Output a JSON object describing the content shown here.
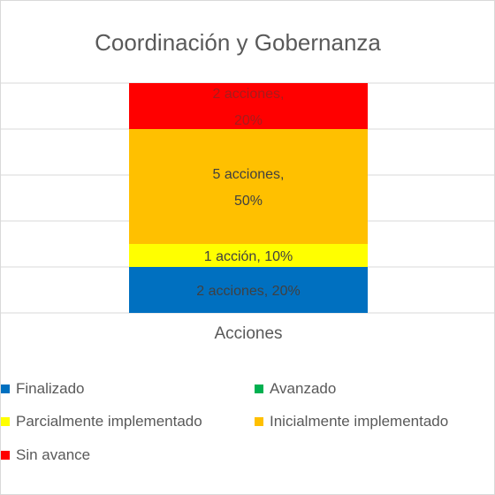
{
  "chart_data": {
    "type": "bar",
    "stacked": true,
    "title": "Coordinación y Gobernanza",
    "categories": [
      "Acciones"
    ],
    "ylim": [
      0,
      100
    ],
    "grid": true,
    "legend_position": "bottom",
    "series": [
      {
        "name": "Finalizado",
        "values": [
          20
        ],
        "label": [
          "2 acciones, 20%"
        ],
        "color": "#0070C0",
        "label_color": "#404040"
      },
      {
        "name": "Avanzado",
        "values": [
          0
        ],
        "label": [
          ""
        ],
        "color": "#00B050",
        "label_color": "#404040"
      },
      {
        "name": "Parcialmente implementado",
        "values": [
          10
        ],
        "label": [
          "1 acción, 10%"
        ],
        "color": "#FFFF00",
        "label_color": "#404040"
      },
      {
        "name": "Inicialmente implementado",
        "values": [
          50
        ],
        "label": [
          "5 acciones,\n50%"
        ],
        "color": "#FFC000",
        "label_color": "#404040"
      },
      {
        "name": "Sin avance",
        "values": [
          20
        ],
        "label": [
          "2 acciones,\n20%"
        ],
        "color": "#FF0000",
        "label_color": "#a61c1c"
      }
    ]
  }
}
